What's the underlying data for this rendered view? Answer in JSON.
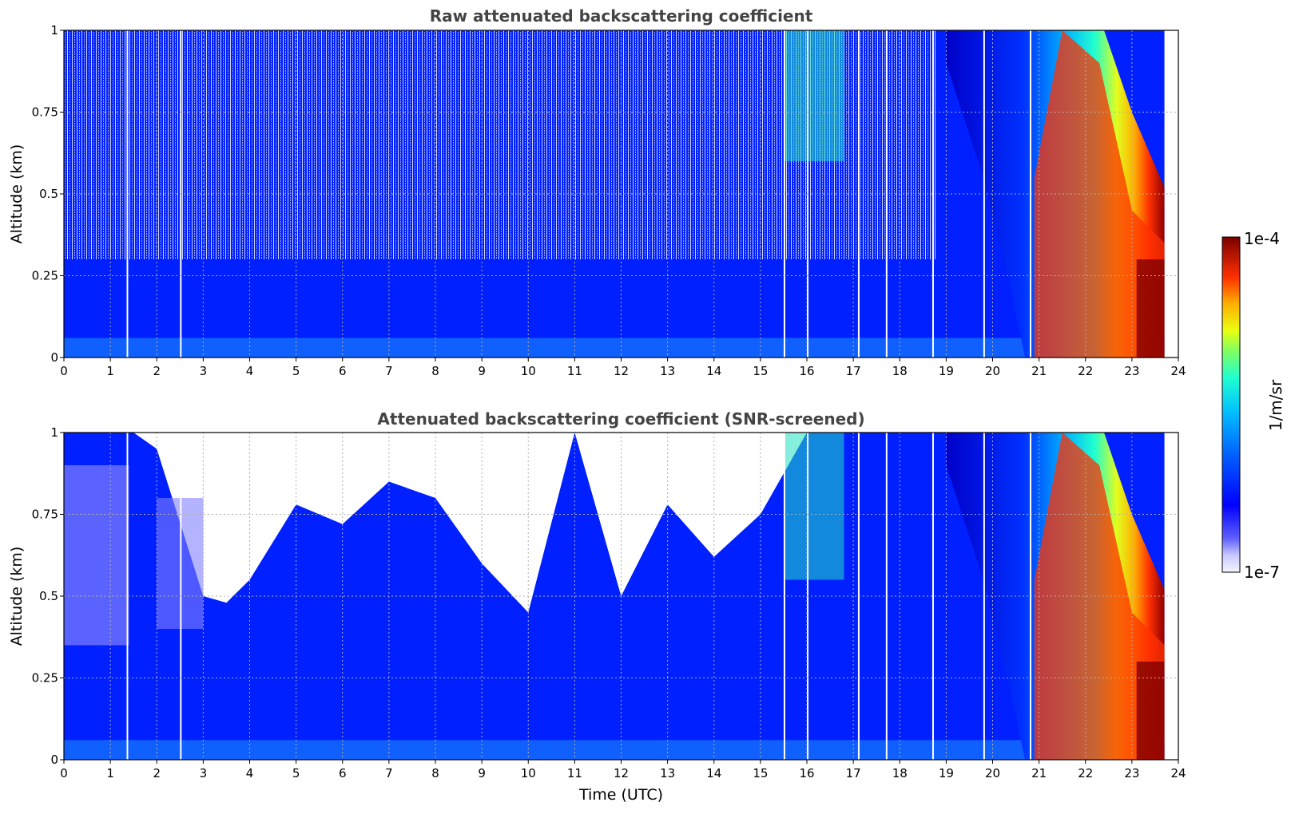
{
  "chart_data": [
    {
      "type": "heatmap",
      "title": "Raw attenuated backscattering coefficient",
      "xlabel": "",
      "ylabel": "Altitude (km)",
      "xlim": [
        0,
        24
      ],
      "ylim": [
        0,
        1
      ],
      "x_ticks": [
        0,
        1,
        2,
        3,
        4,
        5,
        6,
        7,
        8,
        9,
        10,
        11,
        12,
        13,
        14,
        15,
        16,
        17,
        18,
        19,
        20,
        21,
        22,
        23,
        24
      ],
      "x_tick_labels": [
        "0",
        "1",
        "2",
        "3",
        "4",
        "5",
        "6",
        "7",
        "8",
        "9",
        "10",
        "11",
        "12",
        "13",
        "14",
        "15",
        "16",
        "17",
        "18",
        "19",
        "20",
        "21",
        "22",
        "23",
        "24"
      ],
      "y_ticks": [
        0,
        0.25,
        0.5,
        0.75,
        1
      ],
      "y_tick_labels": [
        "0",
        "0.25",
        "0.5",
        "0.75",
        "1"
      ],
      "grid": true,
      "screened": false,
      "data_gaps_hours": [
        1.35,
        2.5,
        15.5,
        16.0,
        17.1,
        17.7,
        18.7,
        19.8,
        20.8
      ],
      "data_end_hour": 23.7,
      "features": [
        {
          "start_hour": 0,
          "end_hour": 18.8,
          "description_level": "background blue, noisy above 0.3 km"
        },
        {
          "start_hour": 15.5,
          "end_hour": 16.8,
          "description_level": "cyan-green layers above 0.6 km"
        },
        {
          "start_hour": 19.0,
          "end_hour": 23.7,
          "description_level": "descending high-backscatter (yellow to dark red) precipitation"
        }
      ]
    },
    {
      "type": "heatmap",
      "title": "Attenuated backscattering coefficient (SNR-screened)",
      "xlabel": "Time (UTC)",
      "ylabel": "Altitude (km)",
      "xlim": [
        0,
        24
      ],
      "ylim": [
        0,
        1
      ],
      "x_ticks": [
        0,
        1,
        2,
        3,
        4,
        5,
        6,
        7,
        8,
        9,
        10,
        11,
        12,
        13,
        14,
        15,
        16,
        17,
        18,
        19,
        20,
        21,
        22,
        23,
        24
      ],
      "x_tick_labels": [
        "0",
        "1",
        "2",
        "3",
        "4",
        "5",
        "6",
        "7",
        "8",
        "9",
        "10",
        "11",
        "12",
        "13",
        "14",
        "15",
        "16",
        "17",
        "18",
        "19",
        "20",
        "21",
        "22",
        "23",
        "24"
      ],
      "y_ticks": [
        0,
        0.25,
        0.5,
        0.75,
        1
      ],
      "y_tick_labels": [
        "0",
        "0.25",
        "0.5",
        "0.75",
        "1"
      ],
      "grid": true,
      "screened": true,
      "data_gaps_hours": [
        1.35,
        2.5,
        15.5,
        16.0,
        17.1,
        17.7,
        18.7,
        19.8,
        20.8
      ],
      "data_end_hour": 23.7,
      "signal_top_km": [
        {
          "hour": 0.0,
          "km": 1.0
        },
        {
          "hour": 1.5,
          "km": 1.0
        },
        {
          "hour": 2.0,
          "km": 0.95
        },
        {
          "hour": 3.0,
          "km": 0.5
        },
        {
          "hour": 3.5,
          "km": 0.48
        },
        {
          "hour": 4.0,
          "km": 0.55
        },
        {
          "hour": 5.0,
          "km": 0.78
        },
        {
          "hour": 6.0,
          "km": 0.72
        },
        {
          "hour": 7.0,
          "km": 0.85
        },
        {
          "hour": 8.0,
          "km": 0.8
        },
        {
          "hour": 9.0,
          "km": 0.6
        },
        {
          "hour": 10.0,
          "km": 0.45
        },
        {
          "hour": 11.0,
          "km": 1.0
        },
        {
          "hour": 12.0,
          "km": 0.5
        },
        {
          "hour": 13.0,
          "km": 0.78
        },
        {
          "hour": 14.0,
          "km": 0.62
        },
        {
          "hour": 15.0,
          "km": 0.75
        },
        {
          "hour": 16.0,
          "km": 1.0
        },
        {
          "hour": 18.0,
          "km": 1.0
        },
        {
          "hour": 24.0,
          "km": 1.0
        }
      ]
    }
  ],
  "colorbar": {
    "label": "1/m/sr",
    "max_label": "1e-4",
    "min_label": "1e-7",
    "scale": "log",
    "range": [
      1e-07,
      0.0001
    ],
    "colormap": "jet"
  }
}
